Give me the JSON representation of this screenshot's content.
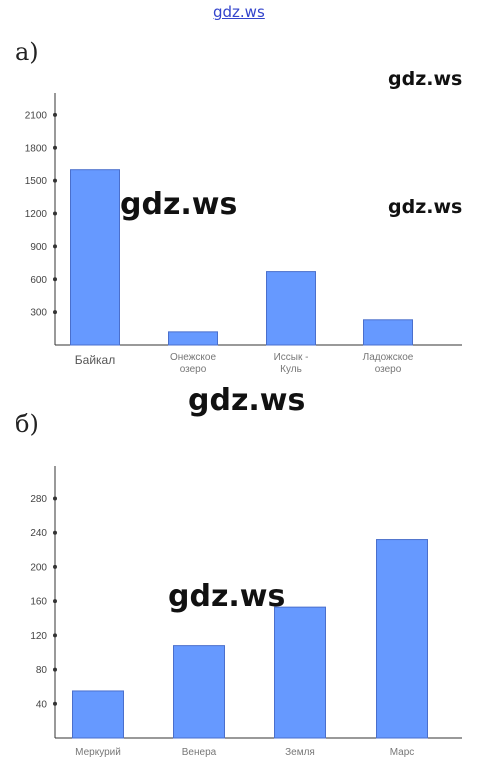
{
  "watermarks": {
    "top": "gdz.ws",
    "a_right_top": "gdz.ws",
    "a_center": "gdz.ws",
    "a_right_mid": "gdz.ws",
    "between": "gdz.ws",
    "b_center": "gdz.ws"
  },
  "panels": {
    "a_label": "а)",
    "b_label": "б)"
  },
  "colors": {
    "bar": "#6699ff",
    "bar_stroke": "#4a6fcc",
    "axis": "#333333"
  },
  "chart_data": [
    {
      "type": "bar",
      "title": "",
      "xlabel": "",
      "ylabel": "",
      "ylim": [
        0,
        2300
      ],
      "yticks": [
        300,
        600,
        900,
        1200,
        1500,
        1800,
        2100
      ],
      "categories": [
        [
          "Байкал"
        ],
        [
          "Онежское",
          "озеро"
        ],
        [
          "Иссык -",
          "Куль"
        ],
        [
          "Ладожское",
          "озеро"
        ]
      ],
      "values": [
        1600,
        120,
        670,
        230
      ],
      "grid": false
    },
    {
      "type": "bar",
      "title": "",
      "xlabel": "",
      "ylabel": "",
      "ylim": [
        0,
        318
      ],
      "yticks": [
        40,
        80,
        120,
        160,
        200,
        240,
        280
      ],
      "categories": [
        [
          "Меркурий"
        ],
        [
          "Венера"
        ],
        [
          "Земля"
        ],
        [
          "Марс"
        ]
      ],
      "values": [
        55,
        108,
        153,
        232
      ],
      "grid": false
    }
  ]
}
